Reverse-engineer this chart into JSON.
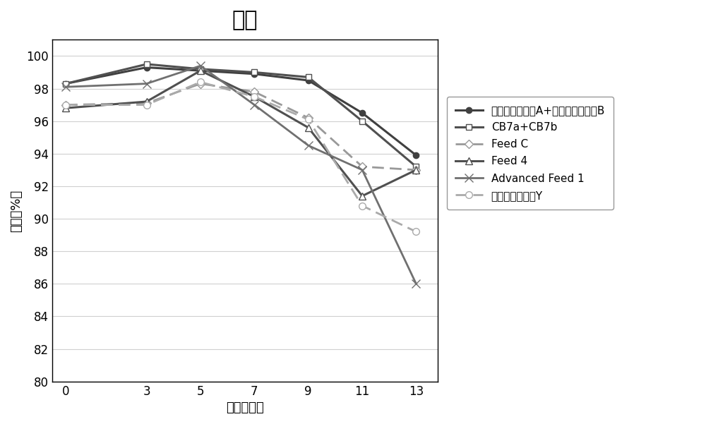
{
  "title": "活率",
  "xlabel": "时间（天）",
  "ylabel": "活率（%）",
  "xlim": [
    -0.5,
    13.8
  ],
  "ylim": [
    80,
    101
  ],
  "yticks": [
    80,
    82,
    84,
    86,
    88,
    90,
    92,
    94,
    96,
    98,
    100
  ],
  "xticks": [
    0,
    3,
    5,
    7,
    9,
    11,
    13
  ],
  "series": [
    {
      "label": "多宁补料培养基A+多宁补料培养基B",
      "x": [
        0,
        3,
        5,
        7,
        9,
        11,
        13
      ],
      "y": [
        98.3,
        99.3,
        99.1,
        98.9,
        98.5,
        96.5,
        93.9
      ],
      "color": "#404040",
      "linestyle": "-",
      "linewidth": 2.2,
      "marker": "o",
      "markersize": 6,
      "markerfacecolor": "#404040",
      "markeredgecolor": "#404040",
      "dashes": null
    },
    {
      "label": "CB7a+CB7b",
      "x": [
        0,
        3,
        5,
        7,
        9,
        11,
        13
      ],
      "y": [
        98.3,
        99.5,
        99.2,
        99.0,
        98.7,
        96.0,
        93.2
      ],
      "color": "#505050",
      "linestyle": "-",
      "linewidth": 2.2,
      "marker": "s",
      "markersize": 6,
      "markerfacecolor": "white",
      "markeredgecolor": "#505050",
      "dashes": null
    },
    {
      "label": "Feed C",
      "x": [
        0,
        3,
        5,
        7,
        9,
        11,
        13
      ],
      "y": [
        97.0,
        97.1,
        98.3,
        97.8,
        96.2,
        93.2,
        93.0
      ],
      "color": "#999999",
      "linestyle": "--",
      "linewidth": 2.0,
      "marker": "D",
      "markersize": 6,
      "markerfacecolor": "white",
      "markeredgecolor": "#999999",
      "dashes": [
        6,
        3
      ]
    },
    {
      "label": "Feed 4",
      "x": [
        0,
        3,
        5,
        7,
        9,
        11,
        13
      ],
      "y": [
        96.8,
        97.2,
        99.1,
        97.5,
        95.6,
        91.4,
        93.0
      ],
      "color": "#505050",
      "linestyle": "-",
      "linewidth": 2.2,
      "marker": "^",
      "markersize": 7,
      "markerfacecolor": "white",
      "markeredgecolor": "#505050",
      "dashes": null
    },
    {
      "label": "Advanced Feed 1",
      "x": [
        0,
        3,
        5,
        7,
        9,
        11,
        13
      ],
      "y": [
        98.1,
        98.3,
        99.4,
        97.0,
        94.5,
        93.0,
        86.0
      ],
      "color": "#707070",
      "linestyle": "-",
      "linewidth": 2.0,
      "marker": "x",
      "markersize": 8,
      "markerfacecolor": "#707070",
      "markeredgecolor": "#707070",
      "dashes": null
    },
    {
      "label": "多宁补料培养基Y",
      "x": [
        0,
        3,
        5,
        7,
        9,
        11,
        13
      ],
      "y": [
        97.0,
        97.0,
        98.4,
        97.5,
        96.1,
        90.8,
        89.2
      ],
      "color": "#aaaaaa",
      "linestyle": "--",
      "linewidth": 2.0,
      "marker": "o",
      "markersize": 7,
      "markerfacecolor": "white",
      "markeredgecolor": "#aaaaaa",
      "dashes": [
        6,
        3
      ]
    }
  ],
  "background_color": "#ffffff",
  "plot_bg_color": "#ffffff",
  "grid_color": "#d0d0d0",
  "title_fontsize": 22,
  "label_fontsize": 13,
  "tick_fontsize": 12,
  "legend_fontsize": 11
}
